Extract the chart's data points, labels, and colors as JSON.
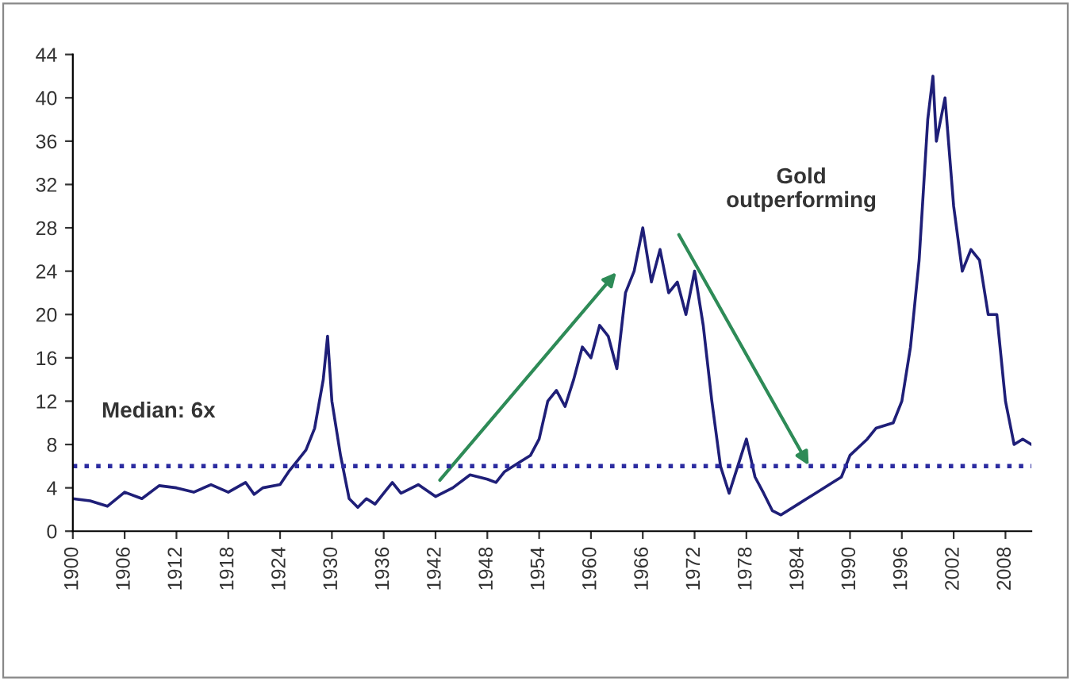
{
  "chart_data": {
    "type": "line",
    "x": [
      1900,
      1902,
      1904,
      1906,
      1908,
      1910,
      1912,
      1914,
      1916,
      1918,
      1920,
      1921,
      1922,
      1924,
      1925,
      1926,
      1927,
      1928,
      1929,
      1929.5,
      1930,
      1931,
      1932,
      1933,
      1934,
      1935,
      1936,
      1937,
      1938,
      1940,
      1942,
      1944,
      1946,
      1948,
      1949,
      1950,
      1952,
      1953,
      1954,
      1955,
      1956,
      1957,
      1958,
      1959,
      1960,
      1961,
      1962,
      1963,
      1964,
      1965,
      1966,
      1967,
      1968,
      1969,
      1970,
      1971,
      1972,
      1973,
      1974,
      1975,
      1976,
      1977,
      1978,
      1979,
      1980,
      1981,
      1982,
      1984,
      1986,
      1988,
      1989,
      1990,
      1992,
      1993,
      1995,
      1996,
      1997,
      1998,
      1999,
      1999.6,
      2000,
      2001,
      2002,
      2003,
      2004,
      2005,
      2006,
      2007,
      2008,
      2009,
      2010,
      2011
    ],
    "series": [
      {
        "color": "#1f1f78",
        "values": [
          3,
          2.8,
          2.3,
          3.6,
          3.0,
          4.2,
          4.0,
          3.6,
          4.3,
          3.6,
          4.5,
          3.4,
          4.0,
          4.3,
          5.5,
          6.5,
          7.5,
          9.5,
          14,
          18,
          12,
          7,
          3,
          2.2,
          3.0,
          2.5,
          3.5,
          4.5,
          3.5,
          4.3,
          3.2,
          4.0,
          5.2,
          4.8,
          4.5,
          5.5,
          6.5,
          7,
          8.5,
          12,
          13,
          11.5,
          14,
          17,
          16,
          19,
          18,
          15,
          22,
          24,
          28,
          23,
          26,
          22,
          23,
          20,
          24,
          19,
          12,
          6,
          3.5,
          6,
          8.5,
          5,
          3.5,
          1.9,
          1.5,
          2.5,
          3.5,
          4.5,
          5,
          7,
          8.5,
          9.5,
          10,
          12,
          17,
          25,
          38,
          42,
          36,
          40,
          30,
          24,
          26,
          25,
          20,
          20,
          12,
          8,
          8.5,
          8
        ]
      }
    ],
    "xlim": [
      1900,
      2011
    ],
    "xticks": [
      1900,
      1906,
      1912,
      1918,
      1924,
      1930,
      1936,
      1942,
      1948,
      1954,
      1960,
      1966,
      1972,
      1978,
      1984,
      1990,
      1996,
      2002,
      2008
    ],
    "ylim": [
      0,
      44
    ],
    "yticks": [
      0,
      4,
      8,
      12,
      16,
      20,
      24,
      28,
      32,
      36,
      40,
      44
    ],
    "ref_lines": [
      {
        "axis": "y",
        "value": 6,
        "label": "Median: 6x",
        "color": "#2b2ba0",
        "line_style": "dotted"
      }
    ],
    "annotations": [
      "Gold\noutperforming"
    ],
    "grid": false,
    "legend": false
  }
}
